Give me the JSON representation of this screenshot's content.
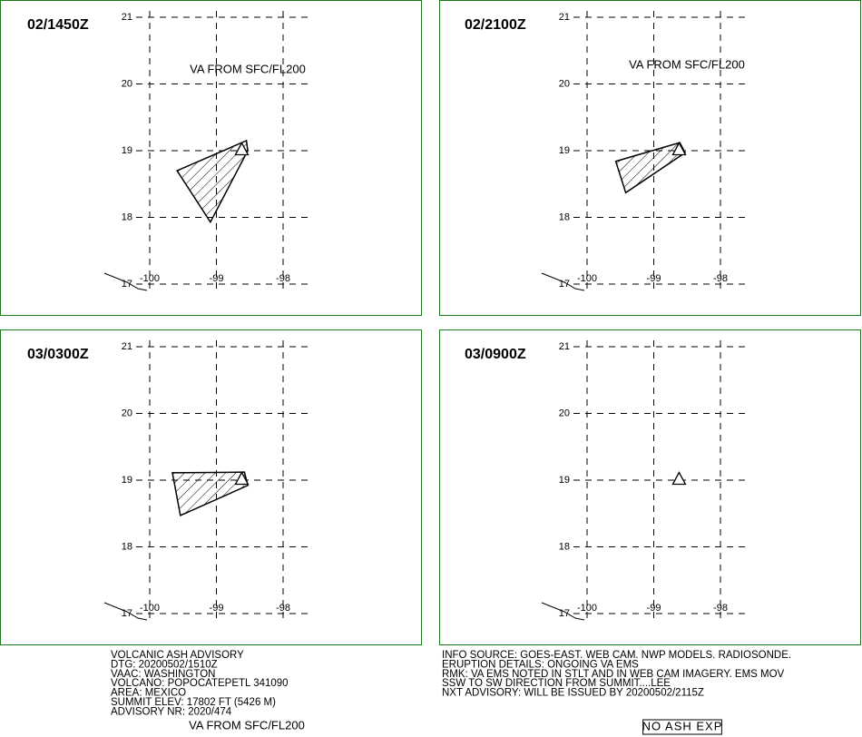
{
  "panels": [
    {
      "time": "02/1450Z",
      "annotation": "VA FROM SFC/FL200",
      "polygon": {
        "lon": [
          -99.59,
          -98.55,
          -98.53,
          -99.09
        ],
        "lat": [
          18.7,
          19.15,
          19.0,
          17.93
        ]
      }
    },
    {
      "time": "02/2100Z",
      "annotation": "VA FROM SFC/FL200",
      "polygon": {
        "lon": [
          -99.57,
          -98.61,
          -98.53,
          -99.42
        ],
        "lat": [
          18.84,
          19.12,
          18.97,
          18.37
        ]
      }
    },
    {
      "time": "03/0300Z",
      "annotation": "VA FROM SFC/FL200",
      "polygon": {
        "lon": [
          -99.66,
          -98.58,
          -98.53,
          -99.54
        ],
        "lat": [
          19.11,
          19.12,
          18.92,
          18.47
        ]
      }
    },
    {
      "time": "03/0900Z",
      "annotation": "NO ASH EXP"
    }
  ],
  "grid": {
    "lon_ticks": [
      -100,
      -99,
      -98
    ],
    "lat_ticks": [
      21,
      20,
      19,
      18,
      17
    ]
  },
  "volcano": {
    "lon": -98.62,
    "lat": 19.02
  },
  "footer": {
    "left": [
      "VOLCANIC ASH ADVISORY",
      "DTG: 20200502/1510Z",
      "VAAC: WASHINGTON",
      "VOLCANO: POPOCATEPETL 341090",
      "AREA: MEXICO",
      "SUMMIT ELEV: 17802 FT (5426 M)",
      "ADVISORY NR: 2020/474"
    ],
    "right": [
      "INFO SOURCE: GOES-EAST. WEB CAM. NWP MODELS. RADIOSONDE.",
      "ERUPTION DETAILS: ONGOING VA EMS",
      "RMK: VA EMS NOTED IN STLT AND IN WEB CAM IMAGERY. EMS MOV",
      "SSW TO SW DIRECTION FROM SUMMIT....LEE",
      "NXT ADVISORY: WILL BE ISSUED BY 20200502/2115Z"
    ]
  }
}
